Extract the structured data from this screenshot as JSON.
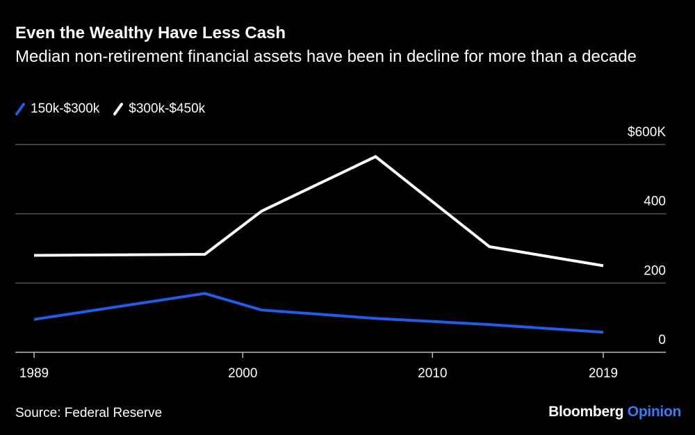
{
  "header": {
    "title": "Even the Wealthy Have Less Cash",
    "subtitle": "Median non-retirement financial assets have been in decline for more than a decade"
  },
  "legend": [
    {
      "label": "150k-$300k",
      "color": "#1f5ee8"
    },
    {
      "label": "$300k-$450k",
      "color": "#ffffff"
    }
  ],
  "footer": {
    "source": "Source: Federal Reserve",
    "brand_primary": "Bloomberg",
    "brand_secondary": "Opinion",
    "brand_secondary_color": "#3a7bf2"
  },
  "chart_data": {
    "type": "line",
    "title": "Even the Wealthy Have Less Cash",
    "subtitle": "Median non-retirement financial assets have been in decline for more than a decade",
    "xlabel": "",
    "ylabel": "",
    "xlim": [
      1989,
      2019
    ],
    "ylim": [
      0,
      600
    ],
    "x_ticks": [
      1989,
      2000,
      2010,
      2019
    ],
    "x_tick_labels": [
      "1989",
      "2000",
      "2010",
      "2019"
    ],
    "y_ticks": [
      0,
      200,
      400,
      600
    ],
    "y_tick_labels": [
      "0",
      "200",
      "400",
      "$600K"
    ],
    "grid": "horizontal",
    "legend_position": "top-left",
    "series": [
      {
        "name": "150k-$300k",
        "color": "#1f5ee8",
        "points": [
          {
            "x": 1989,
            "y": 95
          },
          {
            "x": 1998,
            "y": 170
          },
          {
            "x": 2001,
            "y": 122
          },
          {
            "x": 2007,
            "y": 98
          },
          {
            "x": 2013,
            "y": 80
          },
          {
            "x": 2019,
            "y": 58
          }
        ]
      },
      {
        "name": "$300k-$450k",
        "color": "#ffffff",
        "points": [
          {
            "x": 1989,
            "y": 280
          },
          {
            "x": 1998,
            "y": 283
          },
          {
            "x": 2001,
            "y": 408
          },
          {
            "x": 2007,
            "y": 565
          },
          {
            "x": 2013,
            "y": 305
          },
          {
            "x": 2019,
            "y": 250
          }
        ]
      }
    ]
  }
}
